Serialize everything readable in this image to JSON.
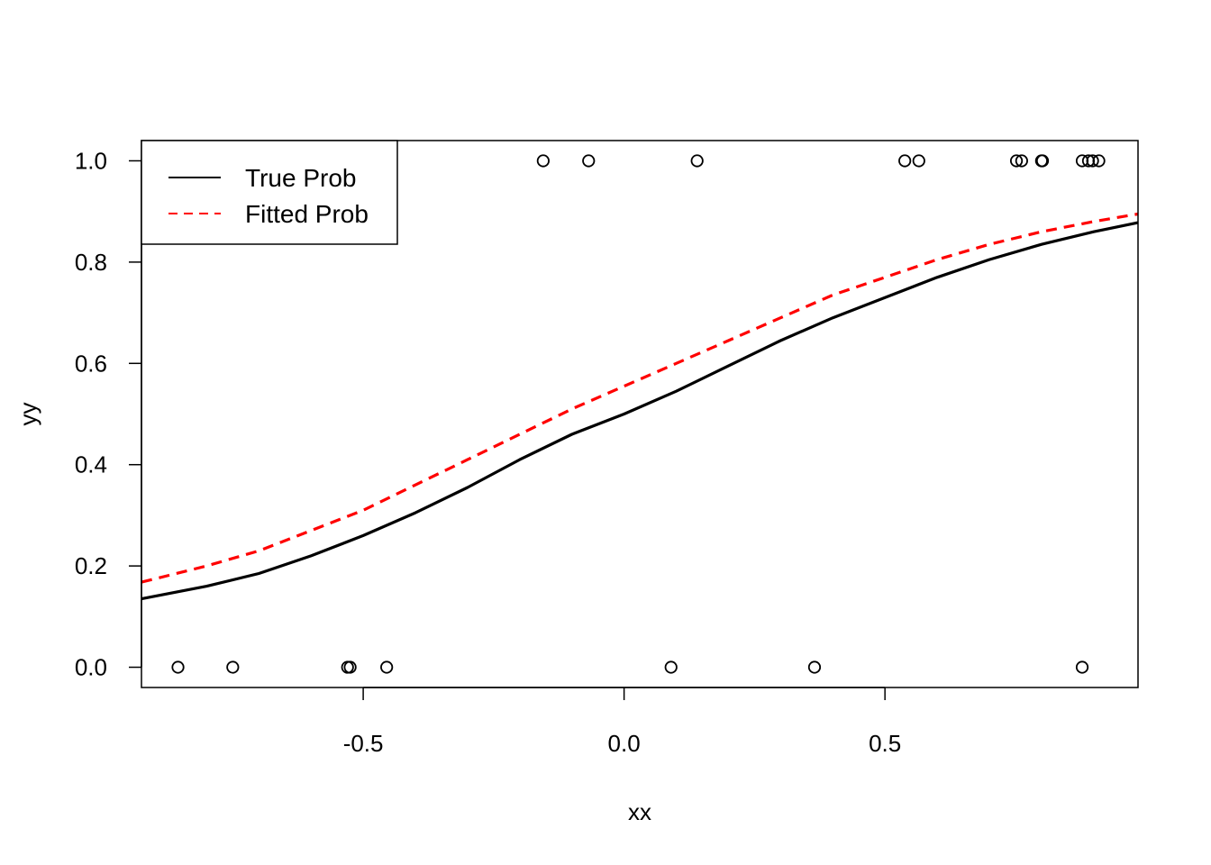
{
  "chart_data": {
    "type": "scatter",
    "title": "",
    "xlabel": "xx",
    "ylabel": "yy",
    "xlim": [
      -0.925,
      0.985
    ],
    "ylim": [
      -0.04,
      1.04
    ],
    "x_ticks": [
      {
        "value": -0.5,
        "label": "-0.5"
      },
      {
        "value": 0.0,
        "label": "0.0"
      },
      {
        "value": 0.5,
        "label": "0.5"
      }
    ],
    "y_ticks": [
      {
        "value": 0.0,
        "label": "0.0"
      },
      {
        "value": 0.2,
        "label": "0.2"
      },
      {
        "value": 0.4,
        "label": "0.4"
      },
      {
        "value": 0.6,
        "label": "0.6"
      },
      {
        "value": 0.8,
        "label": "0.8"
      },
      {
        "value": 1.0,
        "label": "1.0"
      }
    ],
    "grid": false,
    "legend": {
      "placement": "top-left",
      "entries": [
        {
          "label": "True Prob",
          "color": "#000000",
          "style": "solid"
        },
        {
          "label": "Fitted Prob",
          "color": "#ff0000",
          "style": "dashed"
        }
      ]
    },
    "points": {
      "name": "observations",
      "color": "#000000",
      "x": [
        -0.855,
        -0.75,
        -0.53,
        -0.525,
        -0.455,
        -0.155,
        -0.068,
        0.09,
        0.14,
        0.365,
        0.538,
        0.565,
        0.752,
        0.762,
        0.8,
        0.802,
        0.878,
        0.89,
        0.898,
        0.91,
        0.878
      ],
      "y": [
        0,
        0,
        0,
        0,
        0,
        1,
        1,
        0,
        1,
        0,
        1,
        1,
        1,
        1,
        1,
        1,
        1,
        1,
        1,
        1,
        0
      ]
    },
    "series": [
      {
        "name": "True Prob",
        "type": "line",
        "color": "#000000",
        "style": "solid",
        "x": [
          -0.925,
          -0.8,
          -0.7,
          -0.6,
          -0.5,
          -0.4,
          -0.3,
          -0.2,
          -0.1,
          0.0,
          0.1,
          0.2,
          0.3,
          0.4,
          0.5,
          0.6,
          0.7,
          0.8,
          0.9,
          0.985
        ],
        "y": [
          0.135,
          0.16,
          0.185,
          0.22,
          0.26,
          0.305,
          0.355,
          0.41,
          0.46,
          0.5,
          0.545,
          0.595,
          0.645,
          0.69,
          0.73,
          0.77,
          0.805,
          0.835,
          0.86,
          0.878
        ]
      },
      {
        "name": "Fitted Prob",
        "type": "line",
        "color": "#ff0000",
        "style": "dashed",
        "x": [
          -0.925,
          -0.8,
          -0.7,
          -0.6,
          -0.5,
          -0.4,
          -0.3,
          -0.2,
          -0.1,
          0.0,
          0.1,
          0.2,
          0.3,
          0.4,
          0.5,
          0.6,
          0.7,
          0.8,
          0.9,
          0.985
        ],
        "y": [
          0.168,
          0.2,
          0.23,
          0.27,
          0.31,
          0.36,
          0.41,
          0.46,
          0.51,
          0.555,
          0.6,
          0.645,
          0.69,
          0.735,
          0.77,
          0.805,
          0.835,
          0.86,
          0.88,
          0.895
        ]
      }
    ]
  }
}
